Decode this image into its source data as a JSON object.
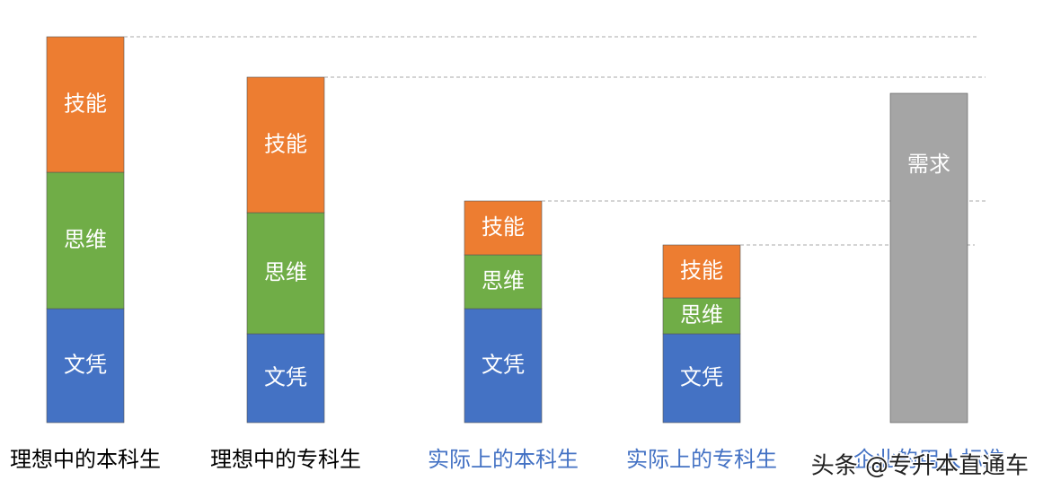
{
  "chart_data": {
    "type": "stacked-bar",
    "categories": [
      "理想中的本科生",
      "理想中的专科生",
      "实际上的本科生",
      "实际上的专科生",
      "企业的用人标准"
    ],
    "category_colors": [
      "#000000",
      "#000000",
      "#4472c4",
      "#4472c4",
      "#4472c4"
    ],
    "series": [
      {
        "name": "文凭",
        "color": "#4472c4",
        "values": [
          127,
          99,
          127,
          99,
          null
        ]
      },
      {
        "name": "思维",
        "color": "#70ad47",
        "values": [
          152,
          135,
          60,
          40,
          null
        ]
      },
      {
        "name": "技能",
        "color": "#ed7d31",
        "values": [
          151,
          151,
          60,
          59,
          null
        ]
      },
      {
        "name": "需求",
        "color": "#a5a5a5",
        "values": [
          null,
          null,
          null,
          null,
          367
        ]
      }
    ],
    "watermark": "头条 @专升本直通车"
  }
}
